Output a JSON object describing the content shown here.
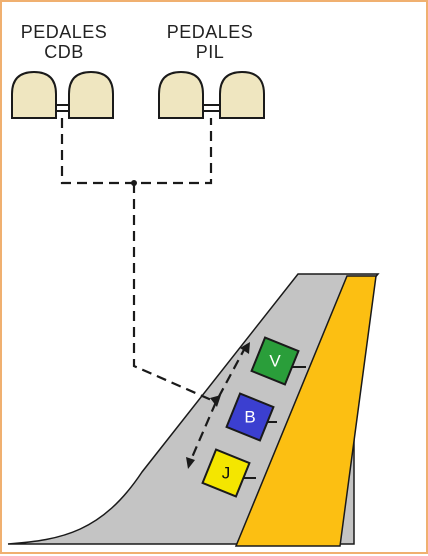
{
  "pedals": {
    "left": {
      "line1": "PEDALES",
      "line2": "CDB"
    },
    "right": {
      "line1": "PEDALES",
      "line2": "PIL"
    }
  },
  "boxes": [
    {
      "letter": "V",
      "color": "#2a9e3a"
    },
    {
      "letter": "B",
      "color": "#3b3fd0"
    },
    {
      "letter": "J",
      "color": "#f4e600"
    }
  ],
  "colors": {
    "tail": "#c4c4c4",
    "rudder": "#fcbf12",
    "pedal": "#efe6c0",
    "outline": "#1a1a1a"
  }
}
